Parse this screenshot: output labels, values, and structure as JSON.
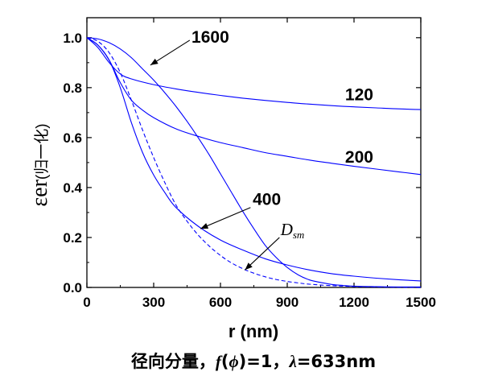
{
  "chart_data": {
    "type": "line",
    "xlabel": "r (nm)",
    "ylabel": "εer(归一化)",
    "ylabel_main": "εer",
    "ylabel_sub": "(归一化)",
    "xlim": [
      0,
      1500
    ],
    "ylim": [
      0,
      1.08
    ],
    "x_ticks": [
      0,
      300,
      600,
      900,
      1200,
      1500
    ],
    "x_tick_labels": [
      "0",
      "300",
      "600",
      "900",
      "1200",
      "1500"
    ],
    "y_ticks": [
      0.0,
      0.2,
      0.4,
      0.6,
      0.8,
      1.0
    ],
    "y_tick_labels": [
      "0.0",
      "0.2",
      "0.4",
      "0.6",
      "0.8",
      "1.0"
    ],
    "grid": false,
    "colors": {
      "series": "#0000ff",
      "axes": "#000000"
    },
    "series": [
      {
        "name": "120",
        "style": "solid",
        "x": [
          0,
          50,
          100,
          150,
          200,
          300,
          400,
          500,
          600,
          700,
          800,
          900,
          1000,
          1100,
          1200,
          1300,
          1400,
          1500
        ],
        "y": [
          1.0,
          0.96,
          0.9,
          0.855,
          0.835,
          0.812,
          0.795,
          0.781,
          0.769,
          0.758,
          0.749,
          0.741,
          0.734,
          0.728,
          0.723,
          0.719,
          0.715,
          0.712
        ]
      },
      {
        "name": "200",
        "style": "solid",
        "x": [
          0,
          50,
          100,
          150,
          200,
          250,
          300,
          400,
          500,
          600,
          700,
          800,
          900,
          1000,
          1100,
          1200,
          1300,
          1400,
          1500
        ],
        "y": [
          1.0,
          0.97,
          0.91,
          0.82,
          0.75,
          0.71,
          0.68,
          0.635,
          0.605,
          0.58,
          0.56,
          0.54,
          0.525,
          0.51,
          0.497,
          0.485,
          0.474,
          0.463,
          0.452
        ]
      },
      {
        "name": "400",
        "style": "solid",
        "x": [
          0,
          50,
          100,
          150,
          200,
          250,
          300,
          350,
          400,
          500,
          600,
          700,
          800,
          900,
          1000,
          1100,
          1200,
          1300,
          1400,
          1500
        ],
        "y": [
          1.0,
          0.97,
          0.91,
          0.8,
          0.66,
          0.54,
          0.45,
          0.38,
          0.32,
          0.245,
          0.19,
          0.15,
          0.115,
          0.09,
          0.07,
          0.055,
          0.045,
          0.037,
          0.031,
          0.026
        ]
      },
      {
        "name": "1600",
        "style": "solid",
        "x": [
          0,
          50,
          100,
          150,
          200,
          250,
          300,
          350,
          400,
          450,
          500,
          550,
          600,
          650,
          700,
          750,
          800,
          850,
          900,
          950,
          1000,
          1050,
          1100,
          1150,
          1200,
          1300,
          1400,
          1500
        ],
        "y": [
          1.0,
          0.995,
          0.98,
          0.955,
          0.92,
          0.875,
          0.83,
          0.78,
          0.725,
          0.665,
          0.6,
          0.53,
          0.455,
          0.38,
          0.305,
          0.235,
          0.17,
          0.12,
          0.08,
          0.05,
          0.03,
          0.02,
          0.012,
          0.008,
          0.005,
          0.003,
          0.002,
          0.002
        ]
      },
      {
        "name": "D_sm",
        "style": "dashed",
        "x": [
          0,
          50,
          100,
          150,
          200,
          250,
          300,
          350,
          400,
          450,
          500,
          550,
          600,
          650,
          700,
          750,
          800,
          850,
          900,
          950,
          1000,
          1100,
          1200,
          1300,
          1400,
          1500
        ],
        "y": [
          1.0,
          0.985,
          0.94,
          0.86,
          0.75,
          0.63,
          0.52,
          0.42,
          0.33,
          0.265,
          0.21,
          0.165,
          0.128,
          0.098,
          0.075,
          0.057,
          0.043,
          0.032,
          0.024,
          0.018,
          0.013,
          0.007,
          0.004,
          0.002,
          0.001,
          0.0
        ]
      }
    ],
    "annotations": [
      {
        "text": "1600",
        "italic": false,
        "arrow_from": [
          462,
          0.99
        ],
        "arrow_to": [
          285,
          0.89
        ],
        "text_at": [
          470,
          0.98
        ]
      },
      {
        "text": "120",
        "italic": false,
        "arrow_from": null,
        "arrow_to": null,
        "text_at": [
          1160,
          0.75
        ]
      },
      {
        "text": "200",
        "italic": false,
        "arrow_from": null,
        "arrow_to": null,
        "text_at": [
          1160,
          0.5
        ]
      },
      {
        "text": "400",
        "italic": false,
        "arrow_from": [
          735,
          0.32
        ],
        "arrow_to": [
          510,
          0.235
        ],
        "text_at": [
          745,
          0.33
        ]
      },
      {
        "text": "D",
        "subscript": "sm",
        "italic": true,
        "arrow_from": [
          865,
          0.2
        ],
        "arrow_to": [
          710,
          0.07
        ],
        "text_at": [
          870,
          0.21
        ]
      }
    ]
  },
  "caption": {
    "prefix": "径向分量，",
    "f_text": "f",
    "paren_open": "(",
    "phi": "ϕ",
    "paren_close": ")",
    "f_value": "=1，",
    "lambda": "λ",
    "lambda_value": "=633nm"
  }
}
